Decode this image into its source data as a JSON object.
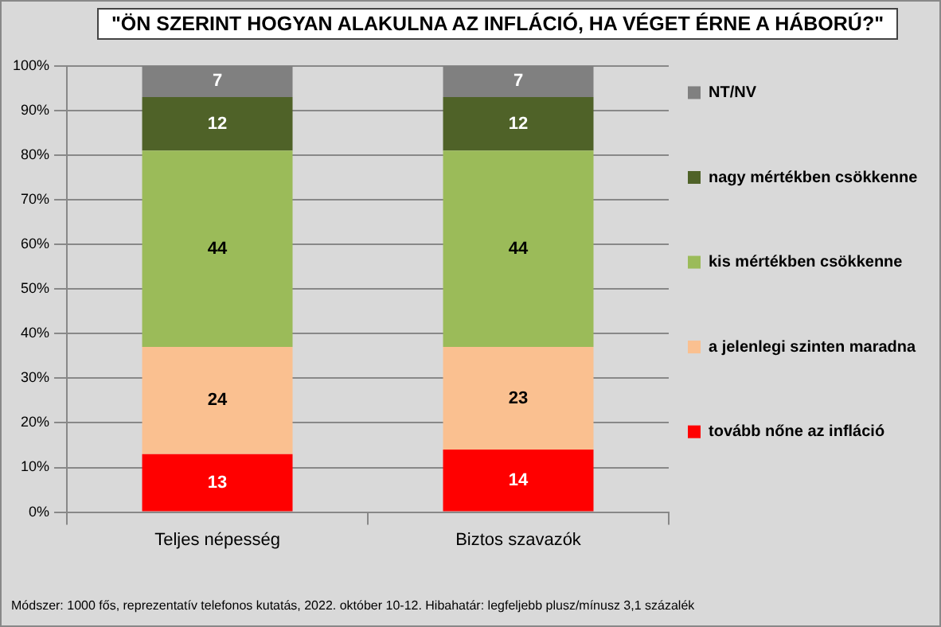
{
  "chart_data": {
    "type": "bar",
    "title": "\"ÖN SZERINT HOGYAN ALAKULNA AZ INFLÁCIÓ, HA VÉGET ÉRNE A HÁBORÚ?\"",
    "categories": [
      "Teljes népesség",
      "Biztos szavazók"
    ],
    "stacked": true,
    "series": [
      {
        "name": "tovább nőne az infláció",
        "color": "#ff0000",
        "values": [
          13,
          14
        ]
      },
      {
        "name": "a jelenlegi szinten maradna",
        "color": "#fac090",
        "values": [
          24,
          23
        ]
      },
      {
        "name": "kis mértékben csökkenne",
        "color": "#9bbb59",
        "values": [
          44,
          44
        ]
      },
      {
        "name": "nagy mértékben csökkenne",
        "color": "#4f6228",
        "values": [
          12,
          12
        ]
      },
      {
        "name": "NT/NV",
        "color": "#808080",
        "values": [
          7,
          7
        ]
      }
    ],
    "ylim": [
      0,
      100
    ],
    "yticks": [
      {
        "value": 0,
        "label": "0%"
      },
      {
        "value": 10,
        "label": "10%"
      },
      {
        "value": 20,
        "label": "20%"
      },
      {
        "value": 30,
        "label": "30%"
      },
      {
        "value": 40,
        "label": "40%"
      },
      {
        "value": 50,
        "label": "50%"
      },
      {
        "value": 60,
        "label": "60%"
      },
      {
        "value": 70,
        "label": "70%"
      },
      {
        "value": 80,
        "label": "80%"
      },
      {
        "value": 90,
        "label": "90%"
      },
      {
        "value": 100,
        "label": "100%"
      }
    ],
    "grid": "y",
    "legend": "right",
    "data_labels": true,
    "annotations": [
      "Módszer: 1000 fős, reprezentatív telefonos kutatás, 2022. október 10-12. Hibahatár: legfeljebb plusz/mínusz 3,1 százalék"
    ]
  }
}
